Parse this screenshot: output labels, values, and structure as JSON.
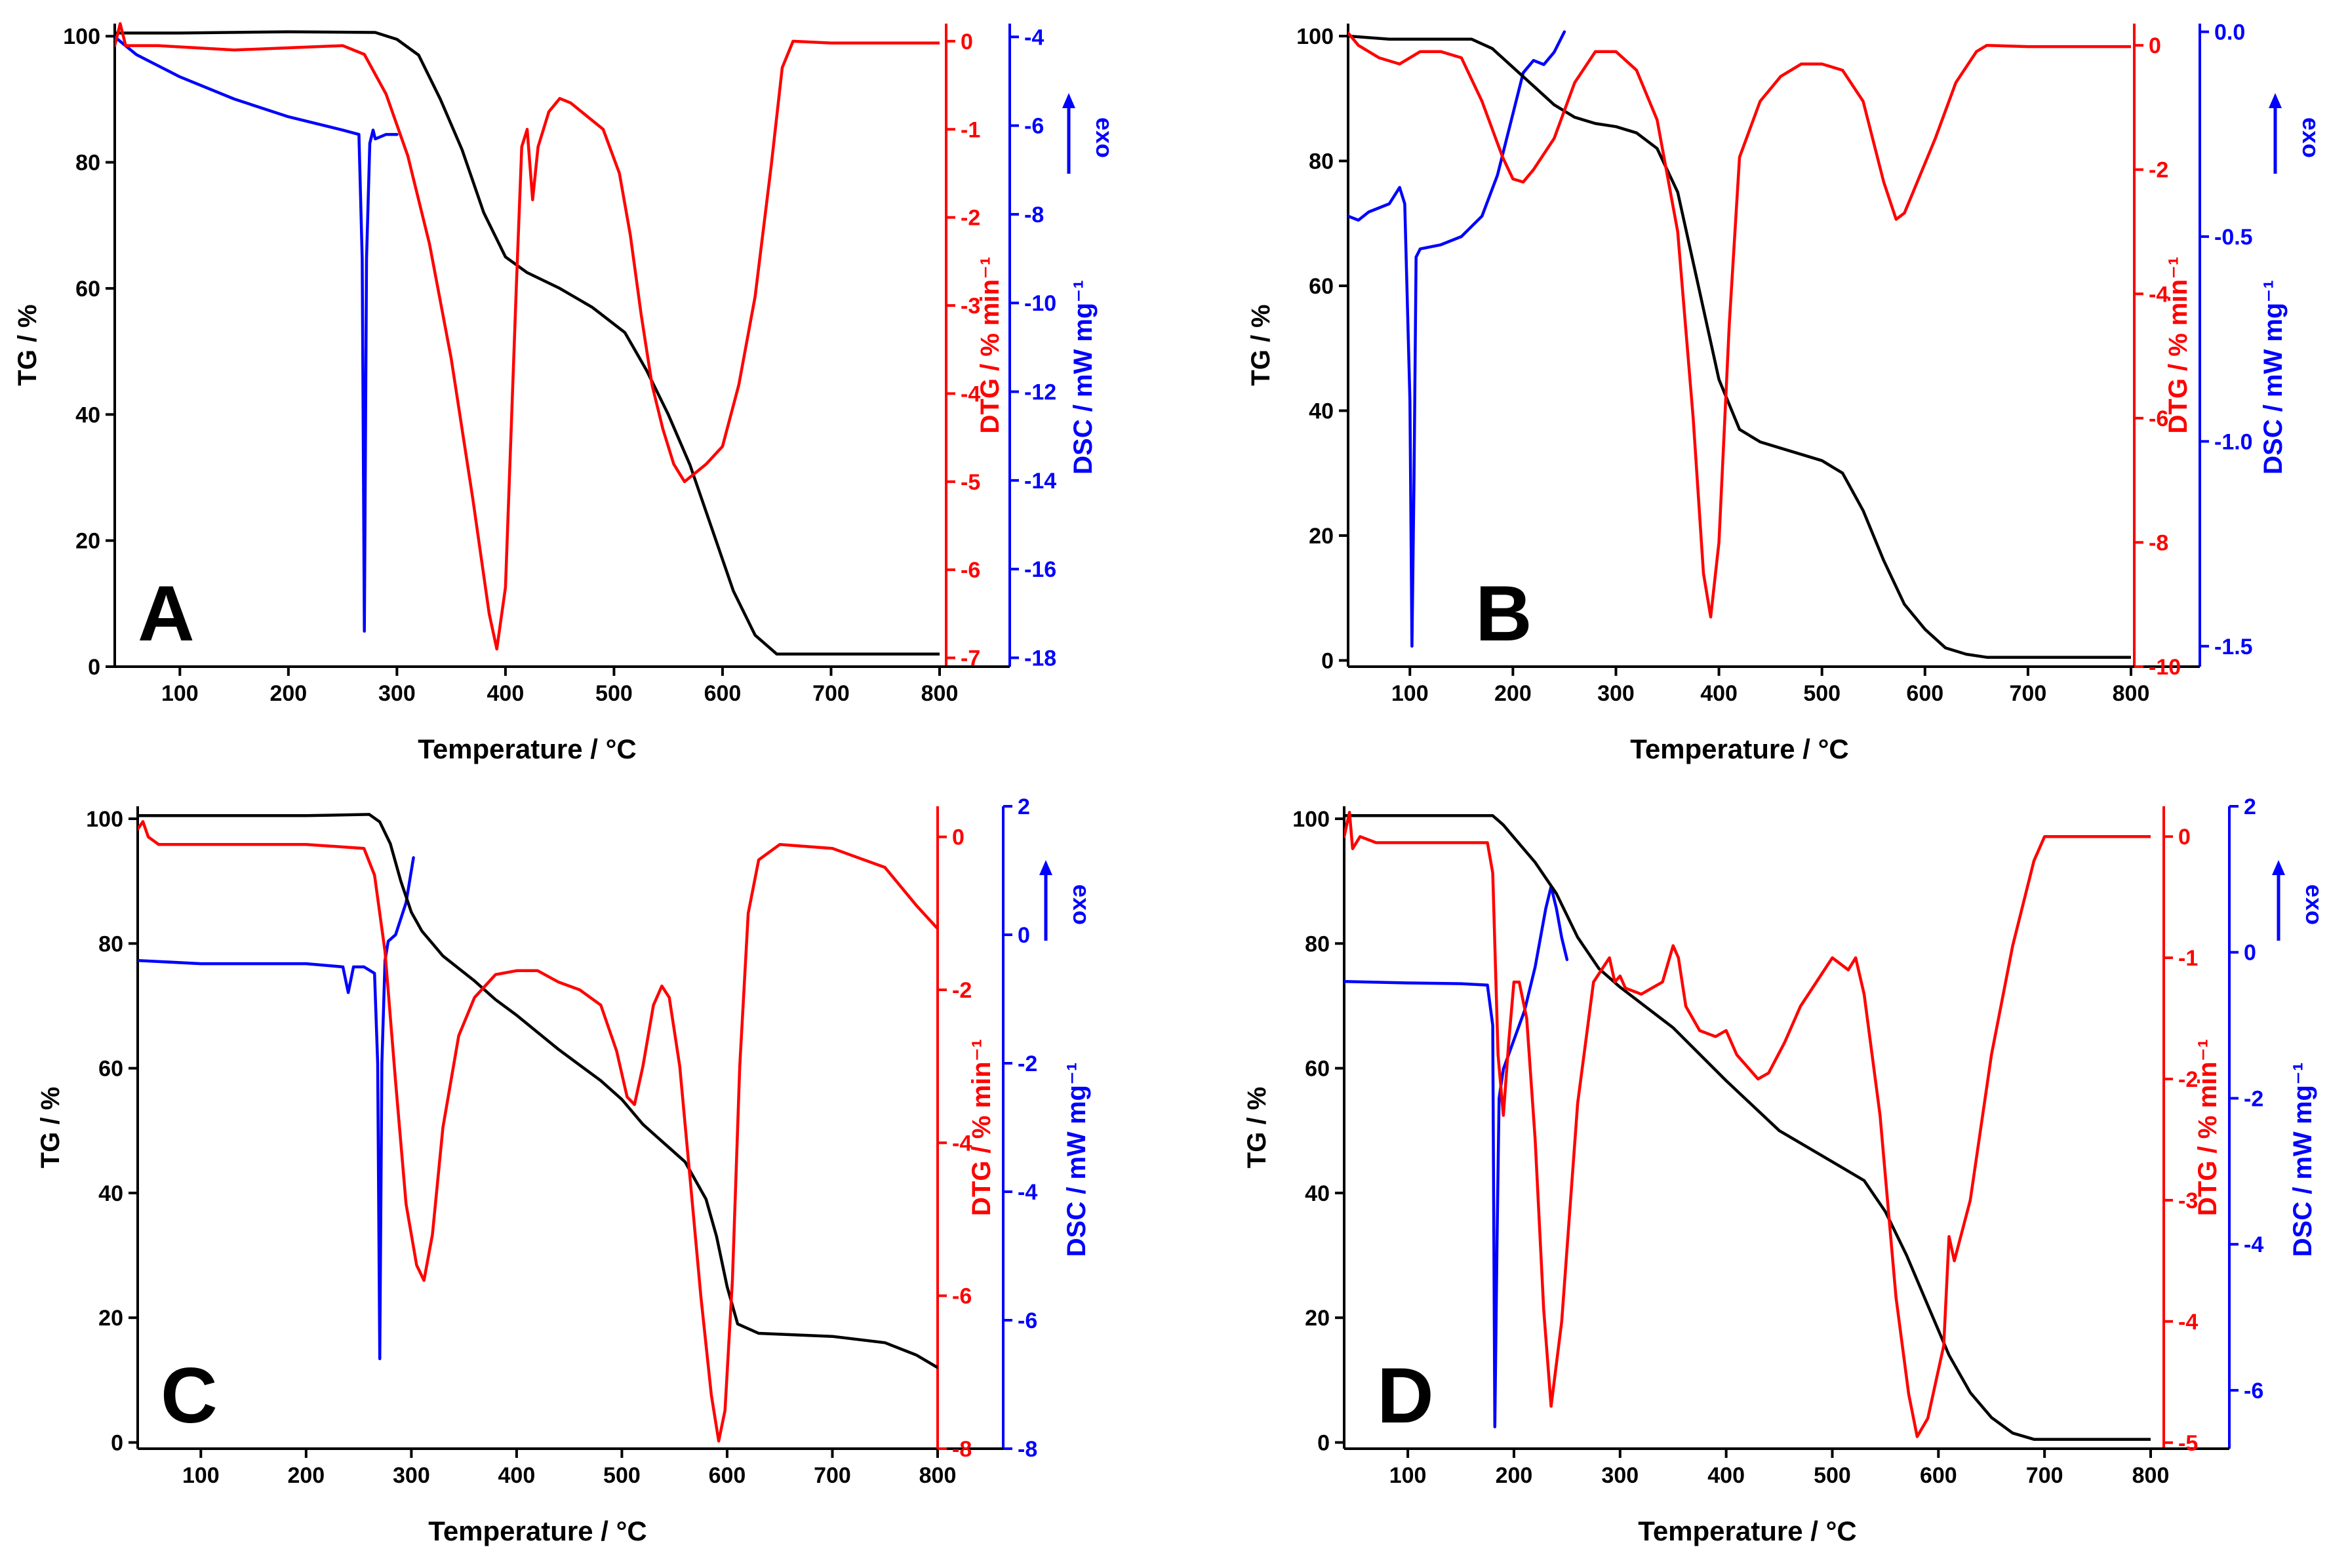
{
  "figure": {
    "description_panels": [
      "A",
      "B",
      "C",
      "D"
    ]
  },
  "chart_data": [
    {
      "type": "line",
      "panel_label": "A",
      "xlabel": "Temperature / °C",
      "xlim": [
        40,
        800
      ],
      "xticks": [
        100,
        200,
        300,
        400,
        500,
        600,
        700,
        800
      ],
      "y_left": {
        "label": "TG / %",
        "lim": [
          0,
          102
        ],
        "ticks": [
          0,
          20,
          40,
          60,
          80,
          100
        ]
      },
      "y_dtg": {
        "label": "DTG / % min⁻¹",
        "lim": [
          -7.1,
          0.2
        ],
        "ticks": [
          0,
          -1,
          -2,
          -3,
          -4,
          -5,
          -6,
          -7
        ]
      },
      "y_dsc": {
        "label": "DSC / mW mg⁻¹",
        "lim": [
          -18.2,
          -3.7
        ],
        "ticks": [
          -4,
          -6,
          -8,
          -10,
          -12,
          -14,
          -16,
          -18
        ]
      },
      "exo_label": "exo",
      "colors": {
        "tg": "#000000",
        "dtg": "#ff0000",
        "dsc": "#0000ff"
      },
      "series": [
        {
          "name": "TG",
          "axis": "left",
          "color": "#000000",
          "x": [
            40,
            100,
            200,
            280,
            300,
            320,
            340,
            360,
            380,
            400,
            420,
            450,
            480,
            510,
            530,
            550,
            570,
            590,
            610,
            630,
            650,
            700,
            800
          ],
          "y": [
            100.5,
            100.5,
            100.7,
            100.6,
            99.5,
            97,
            90,
            82,
            72,
            65,
            62.5,
            60,
            57,
            53,
            47,
            40,
            32,
            22,
            12,
            5,
            2,
            2,
            2
          ]
        },
        {
          "name": "DTG",
          "axis": "dtg",
          "color": "#ff0000",
          "x": [
            40,
            45,
            50,
            60,
            80,
            150,
            250,
            270,
            290,
            310,
            330,
            350,
            370,
            385,
            392,
            400,
            410,
            415,
            420,
            425,
            430,
            440,
            450,
            460,
            470,
            490,
            505,
            515,
            525,
            535,
            545,
            555,
            565,
            575,
            585,
            600,
            615,
            630,
            645,
            655,
            665,
            700,
            800
          ],
          "y": [
            -0.05,
            0.2,
            -0.05,
            -0.05,
            -0.05,
            -0.1,
            -0.05,
            -0.15,
            -0.6,
            -1.3,
            -2.3,
            -3.6,
            -5.2,
            -6.5,
            -6.9,
            -6.2,
            -2.8,
            -1.2,
            -1.0,
            -1.8,
            -1.2,
            -0.8,
            -0.65,
            -0.7,
            -0.8,
            -1.0,
            -1.5,
            -2.2,
            -3.1,
            -3.9,
            -4.4,
            -4.8,
            -5.0,
            -4.9,
            -4.8,
            -4.6,
            -3.9,
            -2.9,
            -1.4,
            -0.3,
            0.0,
            -0.02,
            -0.02
          ]
        },
        {
          "name": "DSC",
          "axis": "dsc",
          "color": "#0000ff",
          "x": [
            40,
            60,
            100,
            150,
            200,
            250,
            265,
            268,
            270,
            272,
            275,
            278,
            280,
            290,
            300
          ],
          "y": [
            -4.0,
            -4.4,
            -4.9,
            -5.4,
            -5.8,
            -6.1,
            -6.2,
            -9.0,
            -17.4,
            -9.0,
            -6.4,
            -6.1,
            -6.3,
            -6.2,
            -6.2
          ]
        }
      ]
    },
    {
      "type": "line",
      "panel_label": "B",
      "xlabel": "Temperature / °C",
      "xlim": [
        40,
        800
      ],
      "xticks": [
        100,
        200,
        300,
        400,
        500,
        600,
        700,
        800
      ],
      "y_left": {
        "label": "TG / %",
        "lim": [
          -1,
          102
        ],
        "ticks": [
          0,
          20,
          40,
          60,
          80,
          100
        ]
      },
      "y_dtg": {
        "label": "DTG / % min⁻¹",
        "lim": [
          -10,
          0.35
        ],
        "ticks": [
          0,
          -2,
          -4,
          -6,
          -8,
          -10
        ]
      },
      "y_dsc": {
        "label": "DSC / mW mg⁻¹",
        "lim": [
          -1.55,
          0.02
        ],
        "ticks": [
          0.0,
          -0.5,
          -1.0,
          -1.5
        ],
        "tick_labels": [
          "0.0",
          "-0.5",
          "-1.0",
          "-1.5"
        ]
      },
      "exo_label": "exo",
      "colors": {
        "tg": "#000000",
        "dtg": "#ff0000",
        "dsc": "#0000ff"
      },
      "series": [
        {
          "name": "TG",
          "axis": "left",
          "color": "#000000",
          "x": [
            40,
            80,
            120,
            160,
            180,
            200,
            220,
            240,
            260,
            280,
            300,
            320,
            340,
            360,
            380,
            400,
            420,
            440,
            460,
            480,
            500,
            520,
            540,
            560,
            580,
            600,
            620,
            640,
            660,
            700,
            800
          ],
          "y": [
            100,
            99.5,
            99.5,
            99.5,
            98,
            95,
            92,
            89,
            87,
            86,
            85.5,
            84.5,
            82,
            75,
            60,
            45,
            37,
            35,
            34,
            33,
            32,
            30,
            24,
            16,
            9,
            5,
            2,
            1,
            0.5,
            0.5,
            0.5
          ]
        },
        {
          "name": "DTG",
          "axis": "dtg",
          "color": "#ff0000",
          "x": [
            40,
            50,
            70,
            90,
            110,
            130,
            150,
            170,
            190,
            200,
            210,
            220,
            240,
            260,
            280,
            300,
            320,
            340,
            360,
            375,
            385,
            392,
            400,
            410,
            420,
            440,
            460,
            480,
            500,
            520,
            540,
            560,
            572,
            580,
            590,
            610,
            630,
            650,
            660,
            700,
            800
          ],
          "y": [
            0.2,
            0.0,
            -0.2,
            -0.3,
            -0.1,
            -0.1,
            -0.2,
            -0.9,
            -1.8,
            -2.15,
            -2.2,
            -2.0,
            -1.5,
            -0.6,
            -0.1,
            -0.1,
            -0.4,
            -1.2,
            -3.0,
            -6.0,
            -8.5,
            -9.2,
            -8.0,
            -4.5,
            -1.8,
            -0.9,
            -0.5,
            -0.3,
            -0.3,
            -0.4,
            -0.9,
            -2.2,
            -2.8,
            -2.7,
            -2.3,
            -1.5,
            -0.6,
            -0.1,
            0.0,
            -0.02,
            -0.02
          ]
        },
        {
          "name": "DSC",
          "axis": "dsc",
          "color": "#0000ff",
          "x": [
            40,
            50,
            60,
            80,
            90,
            95,
            100,
            102,
            104,
            106,
            110,
            130,
            150,
            170,
            185,
            200,
            210,
            220,
            230,
            240,
            250
          ],
          "y": [
            -0.45,
            -0.46,
            -0.44,
            -0.42,
            -0.38,
            -0.42,
            -0.9,
            -1.5,
            -1.1,
            -0.55,
            -0.53,
            -0.52,
            -0.5,
            -0.45,
            -0.35,
            -0.2,
            -0.1,
            -0.07,
            -0.08,
            -0.05,
            0.0
          ]
        }
      ]
    },
    {
      "type": "line",
      "panel_label": "C",
      "xlabel": "Temperature / °C",
      "xlim": [
        40,
        800
      ],
      "xticks": [
        100,
        200,
        300,
        400,
        500,
        600,
        700,
        800
      ],
      "y_left": {
        "label": "TG / %",
        "lim": [
          -1,
          102
        ],
        "ticks": [
          0,
          20,
          40,
          60,
          80,
          100
        ]
      },
      "y_dtg": {
        "label": "DTG / % min⁻¹",
        "lim": [
          -8,
          0.4
        ],
        "ticks": [
          0,
          -2,
          -4,
          -6,
          -8
        ]
      },
      "y_dsc": {
        "label": "DSC / mW mg⁻¹",
        "lim": [
          -8,
          2
        ],
        "ticks": [
          2,
          0,
          -2,
          -4,
          -6,
          -8
        ]
      },
      "exo_label": "exo",
      "colors": {
        "tg": "#000000",
        "dtg": "#ff0000",
        "dsc": "#0000ff"
      },
      "series": [
        {
          "name": "TG",
          "axis": "left",
          "color": "#000000",
          "x": [
            40,
            100,
            200,
            260,
            270,
            280,
            290,
            300,
            310,
            320,
            330,
            345,
            360,
            380,
            400,
            440,
            480,
            500,
            520,
            540,
            560,
            580,
            590,
            600,
            610,
            630,
            700,
            750,
            780,
            800
          ],
          "y": [
            100.5,
            100.5,
            100.5,
            100.7,
            99.5,
            96,
            90,
            85,
            82,
            80,
            78,
            76,
            74,
            71,
            68.5,
            63,
            58,
            55,
            51,
            48,
            45,
            39,
            33,
            25,
            19,
            17.5,
            17,
            16,
            14,
            12
          ]
        },
        {
          "name": "DTG",
          "axis": "dtg",
          "color": "#ff0000",
          "x": [
            40,
            45,
            50,
            60,
            80,
            200,
            255,
            265,
            275,
            285,
            295,
            305,
            312,
            320,
            330,
            345,
            360,
            380,
            400,
            420,
            440,
            460,
            480,
            495,
            505,
            512,
            520,
            530,
            538,
            545,
            555,
            565,
            575,
            585,
            592,
            598,
            605,
            612,
            620,
            630,
            650,
            700,
            750,
            780,
            800
          ],
          "y": [
            0.1,
            0.2,
            0.0,
            -0.1,
            -0.1,
            -0.1,
            -0.15,
            -0.5,
            -1.5,
            -3.2,
            -4.8,
            -5.6,
            -5.8,
            -5.2,
            -3.8,
            -2.6,
            -2.1,
            -1.8,
            -1.75,
            -1.75,
            -1.9,
            -2.0,
            -2.2,
            -2.8,
            -3.4,
            -3.5,
            -3.0,
            -2.2,
            -1.95,
            -2.1,
            -3.0,
            -4.5,
            -6.0,
            -7.3,
            -7.9,
            -7.5,
            -5.8,
            -3.0,
            -1.0,
            -0.3,
            -0.1,
            -0.15,
            -0.4,
            -0.9,
            -1.2
          ]
        },
        {
          "name": "DSC",
          "axis": "dsc",
          "color": "#0000ff",
          "x": [
            40,
            100,
            200,
            235,
            240,
            245,
            255,
            265,
            268,
            270,
            272,
            275,
            278,
            285,
            295,
            302
          ],
          "y": [
            -0.4,
            -0.45,
            -0.45,
            -0.5,
            -0.9,
            -0.5,
            -0.5,
            -0.6,
            -2.0,
            -6.6,
            -2.0,
            -0.4,
            -0.1,
            0.0,
            0.5,
            1.2
          ]
        }
      ]
    },
    {
      "type": "line",
      "panel_label": "D",
      "xlabel": "Temperature / °C",
      "xlim": [
        40,
        800
      ],
      "xticks": [
        100,
        200,
        300,
        400,
        500,
        600,
        700,
        800
      ],
      "y_left": {
        "label": "TG / %",
        "lim": [
          -1,
          102
        ],
        "ticks": [
          0,
          20,
          40,
          60,
          80,
          100
        ]
      },
      "y_dtg": {
        "label": "DTG / % min⁻¹",
        "lim": [
          -5.05,
          0.25
        ],
        "ticks": [
          0,
          -1,
          -2,
          -3,
          -4,
          -5
        ]
      },
      "y_dsc": {
        "label": "DSC / mW mg⁻¹",
        "lim": [
          -6.8,
          2
        ],
        "ticks": [
          2,
          0,
          -2,
          -4,
          -6
        ]
      },
      "exo_label": "exo",
      "colors": {
        "tg": "#000000",
        "dtg": "#ff0000",
        "dsc": "#0000ff"
      },
      "series": [
        {
          "name": "TG",
          "axis": "left",
          "color": "#000000",
          "x": [
            40,
            100,
            150,
            180,
            190,
            200,
            220,
            240,
            260,
            280,
            300,
            350,
            400,
            450,
            500,
            530,
            550,
            570,
            590,
            610,
            630,
            650,
            670,
            690,
            700,
            800
          ],
          "y": [
            100.5,
            100.5,
            100.5,
            100.5,
            99,
            97,
            93,
            88,
            81,
            76,
            73,
            66.5,
            58,
            50,
            45,
            42,
            37,
            30,
            22,
            14,
            8,
            4,
            1.5,
            0.5,
            0.5,
            0.5
          ]
        },
        {
          "name": "DTG",
          "axis": "dtg",
          "color": "#ff0000",
          "x": [
            40,
            45,
            48,
            55,
            70,
            100,
            150,
            175,
            180,
            185,
            190,
            195,
            200,
            205,
            212,
            220,
            228,
            235,
            245,
            260,
            275,
            290,
            295,
            300,
            305,
            320,
            340,
            350,
            355,
            362,
            375,
            390,
            400,
            410,
            420,
            430,
            440,
            455,
            470,
            485,
            500,
            515,
            522,
            530,
            545,
            560,
            572,
            580,
            590,
            605,
            610,
            615,
            630,
            650,
            670,
            690,
            700,
            800
          ],
          "y": [
            0.0,
            0.2,
            -0.1,
            0.0,
            -0.05,
            -0.05,
            -0.05,
            -0.05,
            -0.3,
            -1.8,
            -2.3,
            -1.7,
            -1.2,
            -1.2,
            -1.5,
            -2.5,
            -3.9,
            -4.7,
            -4.0,
            -2.2,
            -1.2,
            -1.0,
            -1.2,
            -1.15,
            -1.25,
            -1.3,
            -1.2,
            -0.9,
            -1.0,
            -1.4,
            -1.6,
            -1.65,
            -1.6,
            -1.8,
            -1.9,
            -2.0,
            -1.95,
            -1.7,
            -1.4,
            -1.2,
            -1.0,
            -1.1,
            -1.0,
            -1.3,
            -2.3,
            -3.8,
            -4.6,
            -4.95,
            -4.8,
            -4.2,
            -3.3,
            -3.5,
            -3.0,
            -1.8,
            -0.9,
            -0.2,
            0.0,
            0.0
          ]
        },
        {
          "name": "DSC",
          "axis": "dsc",
          "color": "#0000ff",
          "x": [
            40,
            100,
            150,
            175,
            180,
            182,
            184,
            186,
            190,
            195,
            200,
            210,
            220,
            230,
            235,
            240,
            245,
            250
          ],
          "y": [
            -0.4,
            -0.42,
            -0.43,
            -0.45,
            -1.0,
            -6.5,
            -4.0,
            -2.0,
            -1.6,
            -1.4,
            -1.2,
            -0.8,
            -0.2,
            0.6,
            0.9,
            0.6,
            0.2,
            -0.1
          ]
        }
      ]
    }
  ]
}
